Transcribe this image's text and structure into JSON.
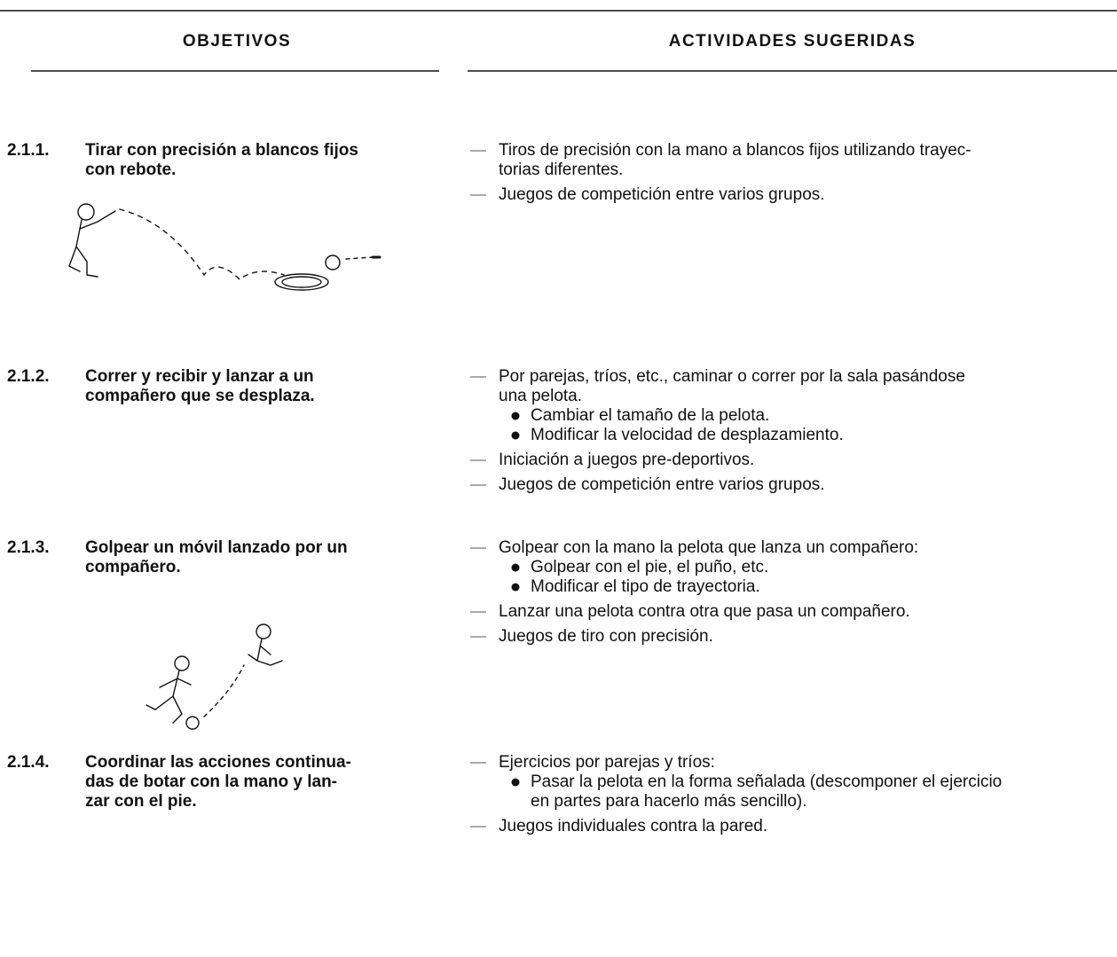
{
  "header": {
    "left": "OBJETIVOS",
    "right": "ACTIVIDADES SUGERIDAS"
  },
  "rows": [
    {
      "number": "2.1.1.",
      "objective": [
        "Tirar con precisión a blancos fijos",
        "con rebote."
      ],
      "activities": [
        {
          "lines": [
            "Tiros de precisión con la mano a blancos fijos utilizando trayec-",
            "torias diferentes."
          ],
          "subitems": []
        },
        {
          "lines": [
            "Juegos de competición entre varios grupos."
          ],
          "subitems": []
        }
      ]
    },
    {
      "number": "2.1.2.",
      "objective": [
        "Correr y recibir y lanzar a un",
        "compañero que se desplaza."
      ],
      "activities": [
        {
          "lines": [
            "Por parejas, tríos, etc., caminar o correr por la sala pasándose",
            "una pelota."
          ],
          "subitems": [
            [
              "Cambiar el tamaño de la pelota."
            ],
            [
              "Modificar la velocidad de desplazamiento."
            ]
          ]
        },
        {
          "lines": [
            "Iniciación a juegos pre-deportivos."
          ],
          "subitems": []
        },
        {
          "lines": [
            "Juegos de competición entre varios grupos."
          ],
          "subitems": []
        }
      ]
    },
    {
      "number": "2.1.3.",
      "objective": [
        "Golpear un móvil lanzado por un",
        "compañero."
      ],
      "activities": [
        {
          "lines": [
            "Golpear con la mano la pelota que lanza un compañero:"
          ],
          "subitems": [
            [
              "Golpear con el pie, el puño, etc."
            ],
            [
              "Modificar el tipo de trayectoria."
            ]
          ]
        },
        {
          "lines": [
            "Lanzar una pelota contra otra que pasa un compañero."
          ],
          "subitems": []
        },
        {
          "lines": [
            "Juegos de tiro con precisión."
          ],
          "subitems": []
        }
      ]
    },
    {
      "number": "2.1.4.",
      "objective": [
        "Coordinar las acciones continua-",
        "das de botar con la mano y lan-",
        "zar con el pie."
      ],
      "activities": [
        {
          "lines": [
            "Ejercicios por parejas y tríos:"
          ],
          "subitems": [
            [
              "Pasar la pelota en la forma señalada (descomponer el ejercicio",
              "en partes para hacerlo más sencillo)."
            ]
          ]
        },
        {
          "lines": [
            "Juegos individuales contra la pared."
          ],
          "subitems": []
        }
      ]
    }
  ]
}
